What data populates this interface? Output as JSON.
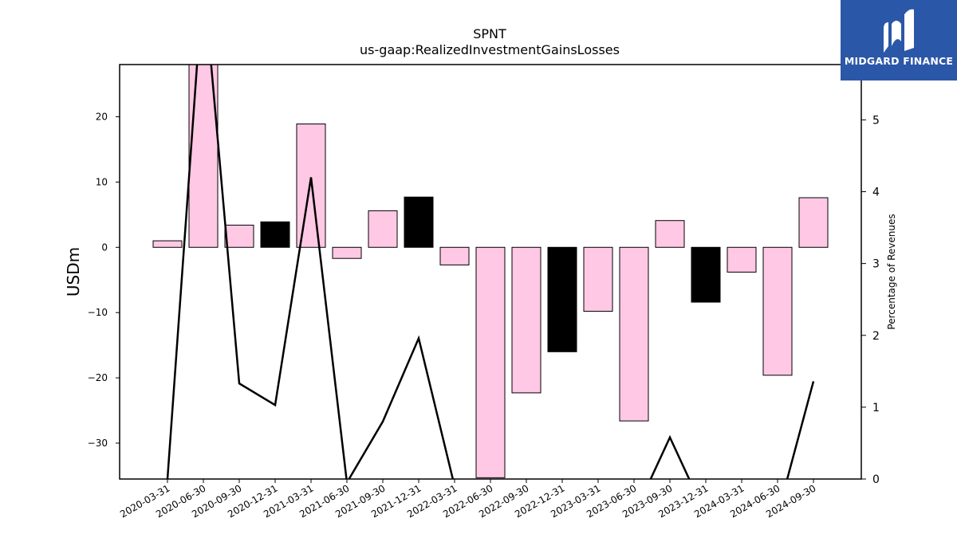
{
  "chart_data": {
    "type": "bar",
    "title": "SPNT",
    "subtitle": "us-gaap:RealizedInvestmentGainsLosses",
    "ylabel": "USDm",
    "y2label": "Percentage of Revenues",
    "categories": [
      "2020-03-31",
      "2020-06-30",
      "2020-09-30",
      "2020-12-31",
      "2021-03-31",
      "2021-06-30",
      "2021-09-30",
      "2021-12-31",
      "2022-03-31",
      "2022-06-30",
      "2022-09-30",
      "2022-12-31",
      "2023-03-31",
      "2023-06-30",
      "2023-09-30",
      "2023-12-31",
      "2024-03-31",
      "2024-06-30",
      "2024-09-30"
    ],
    "series": [
      {
        "values": [
          1.0,
          30.0,
          3.4,
          3.9,
          18.9,
          -1.7,
          5.6,
          7.7,
          -2.7,
          -35.3,
          -22.3,
          -16.0,
          -9.8,
          -26.6,
          4.1,
          -8.4,
          -3.8,
          -19.6,
          7.6
        ],
        "colors": [
          "#ffc8e4",
          "#ffc8e4",
          "#ffc8e4",
          "#000000",
          "#ffc8e4",
          "#ffc8e4",
          "#ffc8e4",
          "#000000",
          "#ffc8e4",
          "#ffc8e4",
          "#ffc8e4",
          "#000000",
          "#ffc8e4",
          "#ffc8e4",
          "#ffc8e4",
          "#000000",
          "#ffc8e4",
          "#ffc8e4",
          "#ffc8e4"
        ]
      },
      {
        "type": "line",
        "axis": "right",
        "values": [
          0.0,
          7.0,
          1.33,
          1.03,
          4.2,
          -0.05,
          0.8,
          1.96,
          -0.1,
          -0.5,
          -0.5,
          -0.5,
          -0.5,
          -0.5,
          0.58,
          -0.5,
          -0.5,
          -0.5,
          1.36
        ],
        "color": "#000000"
      }
    ],
    "ylim": [
      -35.5,
      28.0
    ],
    "y2lim": [
      0,
      5.77
    ],
    "yticks": [
      "20",
      "10",
      "0",
      "−10",
      "−20",
      "−30"
    ],
    "ytick_values": [
      20,
      10,
      0,
      -10,
      -20,
      -30
    ],
    "y2ticks": [
      "5",
      "4",
      "3",
      "2",
      "1",
      "0"
    ],
    "y2tick_values": [
      5,
      4,
      3,
      2,
      1,
      0
    ],
    "grid": false
  },
  "logo": {
    "text": "MIDGARD FINANCE",
    "color": "#2b57a8"
  }
}
